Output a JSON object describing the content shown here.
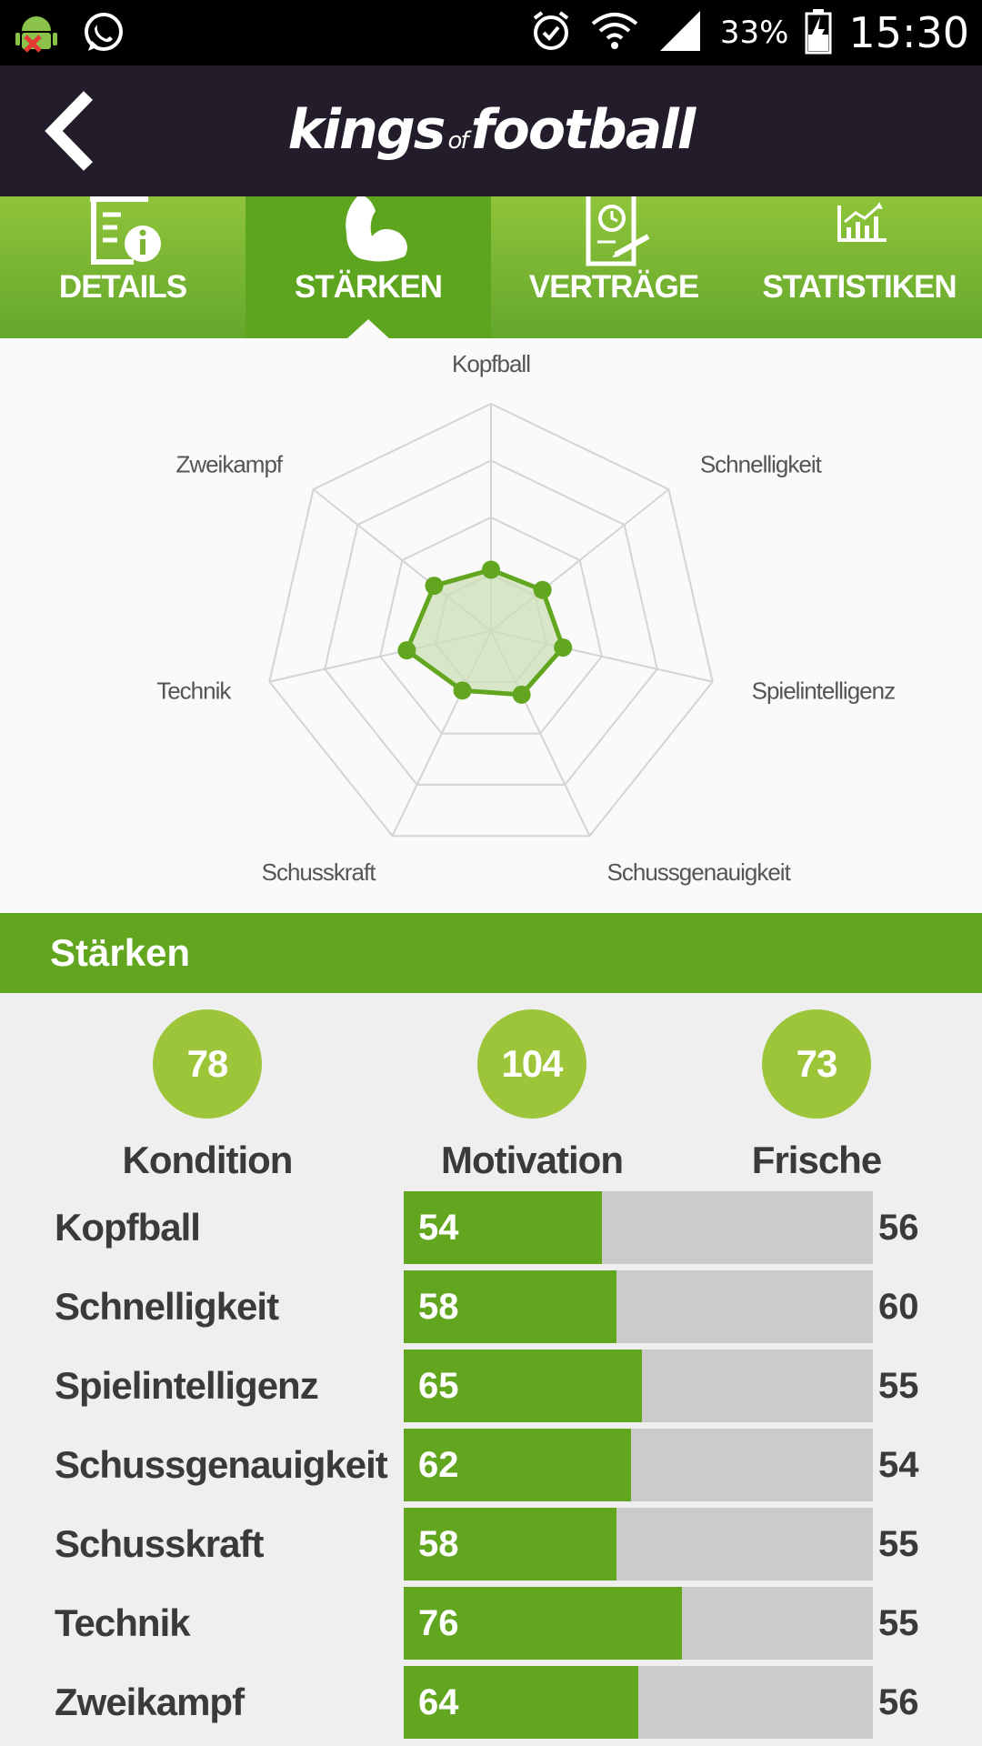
{
  "status_bar": {
    "battery": "33%",
    "time": "15:30",
    "icons": [
      "android-debug-icon",
      "whatsapp-icon",
      "alarm-icon",
      "wifi-icon",
      "signal-icon",
      "battery-icon"
    ]
  },
  "app_bar": {
    "logo_part1": "kings",
    "logo_part2": "of",
    "logo_part3": "football"
  },
  "tabs": [
    {
      "label": "DETAILS",
      "icon": "clipboard-info-icon",
      "active": false
    },
    {
      "label": "STÄRKEN",
      "icon": "flexed-arm-icon",
      "active": true
    },
    {
      "label": "VERTRÄGE",
      "icon": "contract-icon",
      "active": false
    },
    {
      "label": "STATISTIKEN",
      "icon": "chart-icon",
      "active": false
    }
  ],
  "radar": {
    "axes": [
      "Kopfball",
      "Schnelligkeit",
      "Spielintelligenz",
      "Schussgenauigkeit",
      "Schusskraft",
      "Technik",
      "Zweikampf"
    ],
    "values": [
      54,
      58,
      65,
      62,
      58,
      76,
      64
    ],
    "max": 200,
    "rings": 4,
    "colors": {
      "fill": "#c9dfb5",
      "line": "#62a61f",
      "grid": "#d4d4d4"
    }
  },
  "section_title": "Stärken",
  "summary": [
    {
      "value": "78",
      "label": "Kondition"
    },
    {
      "value": "104",
      "label": "Motivation"
    },
    {
      "value": "73",
      "label": "Frische"
    }
  ],
  "skills": [
    {
      "name": "Kopfball",
      "value": 54,
      "compare": "56"
    },
    {
      "name": "Schnelligkeit",
      "value": 58,
      "compare": "60"
    },
    {
      "name": "Spielintelligenz",
      "value": 65,
      "compare": "55"
    },
    {
      "name": "Schussgenauigkeit",
      "value": 62,
      "compare": "54"
    },
    {
      "name": "Schusskraft",
      "value": 58,
      "compare": "55"
    },
    {
      "name": "Technik",
      "value": 76,
      "compare": "55"
    },
    {
      "name": "Zweikampf",
      "value": 64,
      "compare": "56"
    }
  ],
  "bar_max": 128
}
